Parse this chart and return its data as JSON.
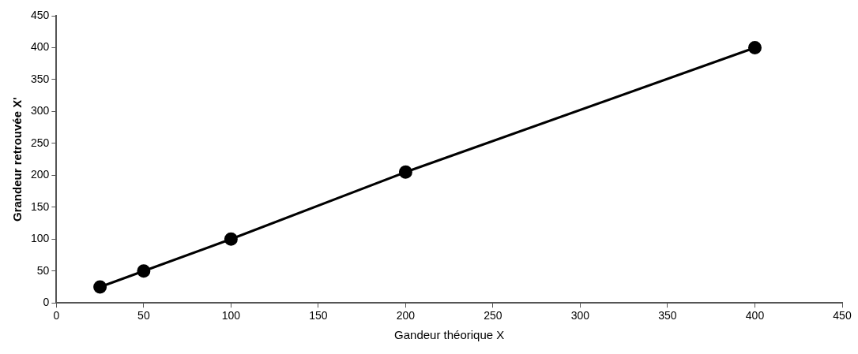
{
  "chart_data": {
    "type": "line",
    "xlabel": "Gandeur théorique X",
    "ylabel": "Grandeur retrouvée X'",
    "x": [
      25,
      50,
      100,
      200,
      400
    ],
    "series": [
      {
        "color": "#000000",
        "values": [
          25,
          50,
          100,
          205,
          400
        ]
      }
    ],
    "xlim": [
      0,
      450
    ],
    "xticks": [
      0,
      50,
      100,
      150,
      200,
      250,
      300,
      350,
      400,
      450
    ],
    "ylim": [
      0,
      450
    ],
    "yticks": [
      0,
      50,
      100,
      150,
      200,
      250,
      300,
      350,
      400,
      450
    ],
    "grid": false,
    "legend": false,
    "marker": "circle",
    "line_style": "solid"
  }
}
